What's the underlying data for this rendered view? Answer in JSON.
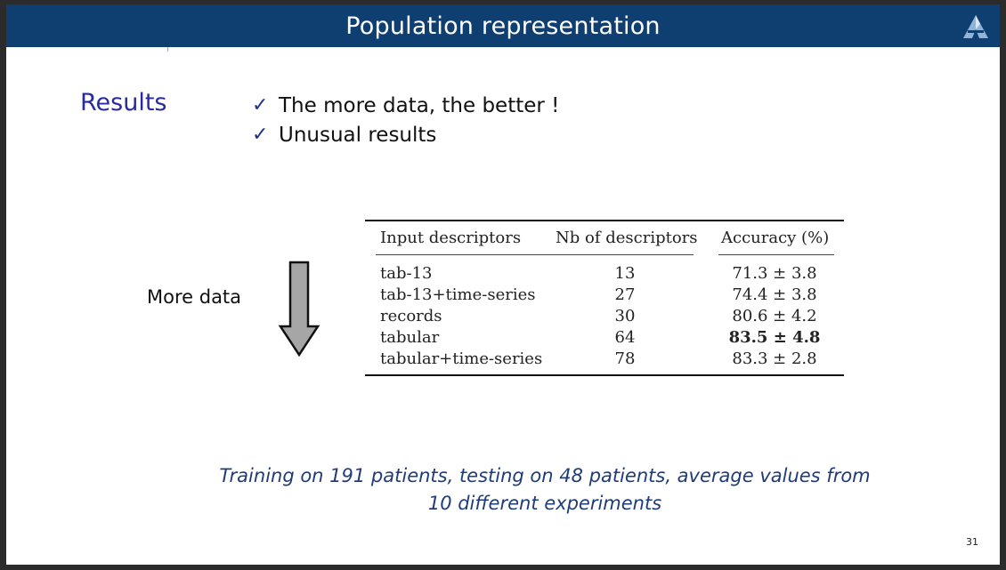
{
  "title": "Population representation",
  "results_label": "Results",
  "bullets": [
    {
      "check": "✓",
      "text": "The more data, the better !"
    },
    {
      "check": "✓",
      "text": "Unusual results"
    }
  ],
  "side_label": "More data",
  "table": {
    "headers": [
      "Input descriptors",
      "Nb of descriptors",
      "Accuracy (%)"
    ],
    "rows": [
      {
        "input": "tab-13",
        "nb": "13",
        "accuracy": "71.3 ± 3.8",
        "bold": false
      },
      {
        "input": "tab-13+time-series",
        "nb": "27",
        "accuracy": "74.4 ± 3.8",
        "bold": false
      },
      {
        "input": "records",
        "nb": "30",
        "accuracy": "80.6 ± 4.2",
        "bold": false
      },
      {
        "input": "tabular",
        "nb": "64",
        "accuracy": "83.5 ± 4.8",
        "bold": true
      },
      {
        "input": "tabular+time-series",
        "nb": "78",
        "accuracy": "83.3 ± 2.8",
        "bold": false
      }
    ]
  },
  "footnote_lines": [
    "Training on 191 patients, testing on 48 patients, average values from",
    "10 different experiments"
  ],
  "page_number": "31",
  "colors": {
    "title_bar": "#0f3e70",
    "results_label": "#2a2aa0",
    "footnote": "#1f3c7a",
    "arrow_fill": "#a6a6a6"
  },
  "icons": {
    "logo": "triangle-logo-icon",
    "arrow": "down-arrow-icon",
    "check": "check-icon"
  }
}
